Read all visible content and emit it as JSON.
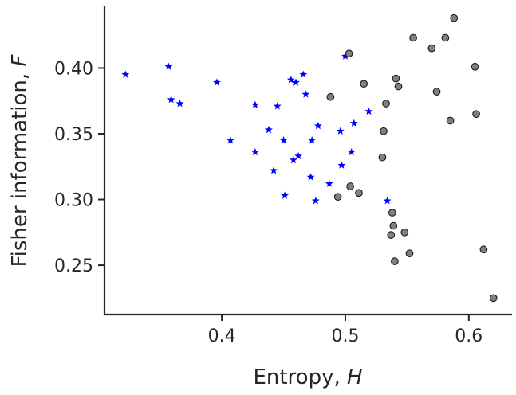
{
  "chart_data": {
    "type": "scatter",
    "xlabel": "Entropy, ",
    "xlabel_var": "H",
    "ylabel": "Fisher information, ",
    "ylabel_var": "F",
    "xlim": [
      0.305,
      0.635
    ],
    "ylim": [
      0.2125,
      0.4475
    ],
    "x_ticks": [
      0.4,
      0.5,
      0.6
    ],
    "x_tick_labels": [
      "0.4",
      "0.5",
      "0.6"
    ],
    "y_ticks": [
      0.25,
      0.3,
      0.35,
      0.4
    ],
    "y_tick_labels": [
      "0.25",
      "0.30",
      "0.35",
      "0.40"
    ],
    "grid": false,
    "legend": "none",
    "series": [
      {
        "marker": "star",
        "color": "#0000ff",
        "points": [
          [
            0.322,
            0.395
          ],
          [
            0.357,
            0.401
          ],
          [
            0.359,
            0.376
          ],
          [
            0.366,
            0.373
          ],
          [
            0.396,
            0.389
          ],
          [
            0.407,
            0.345
          ],
          [
            0.427,
            0.372
          ],
          [
            0.427,
            0.336
          ],
          [
            0.438,
            0.353
          ],
          [
            0.442,
            0.322
          ],
          [
            0.445,
            0.371
          ],
          [
            0.45,
            0.345
          ],
          [
            0.451,
            0.303
          ],
          [
            0.456,
            0.391
          ],
          [
            0.458,
            0.33
          ],
          [
            0.46,
            0.389
          ],
          [
            0.462,
            0.333
          ],
          [
            0.466,
            0.395
          ],
          [
            0.468,
            0.38
          ],
          [
            0.472,
            0.317
          ],
          [
            0.473,
            0.345
          ],
          [
            0.476,
            0.299
          ],
          [
            0.478,
            0.356
          ],
          [
            0.487,
            0.312
          ],
          [
            0.496,
            0.352
          ],
          [
            0.497,
            0.326
          ],
          [
            0.5,
            0.409
          ],
          [
            0.505,
            0.336
          ],
          [
            0.507,
            0.358
          ],
          [
            0.519,
            0.367
          ],
          [
            0.534,
            0.299
          ]
        ]
      },
      {
        "marker": "circle",
        "color": "#808080",
        "points": [
          [
            0.488,
            0.378
          ],
          [
            0.494,
            0.302
          ],
          [
            0.503,
            0.411
          ],
          [
            0.504,
            0.31
          ],
          [
            0.511,
            0.305
          ],
          [
            0.515,
            0.388
          ],
          [
            0.53,
            0.332
          ],
          [
            0.531,
            0.352
          ],
          [
            0.533,
            0.373
          ],
          [
            0.537,
            0.273
          ],
          [
            0.538,
            0.29
          ],
          [
            0.539,
            0.28
          ],
          [
            0.54,
            0.253
          ],
          [
            0.541,
            0.392
          ],
          [
            0.543,
            0.386
          ],
          [
            0.548,
            0.275
          ],
          [
            0.552,
            0.259
          ],
          [
            0.555,
            0.423
          ],
          [
            0.57,
            0.415
          ],
          [
            0.574,
            0.382
          ],
          [
            0.581,
            0.423
          ],
          [
            0.585,
            0.36
          ],
          [
            0.588,
            0.438
          ],
          [
            0.605,
            0.401
          ],
          [
            0.606,
            0.365
          ],
          [
            0.612,
            0.262
          ],
          [
            0.62,
            0.225
          ]
        ]
      }
    ]
  }
}
